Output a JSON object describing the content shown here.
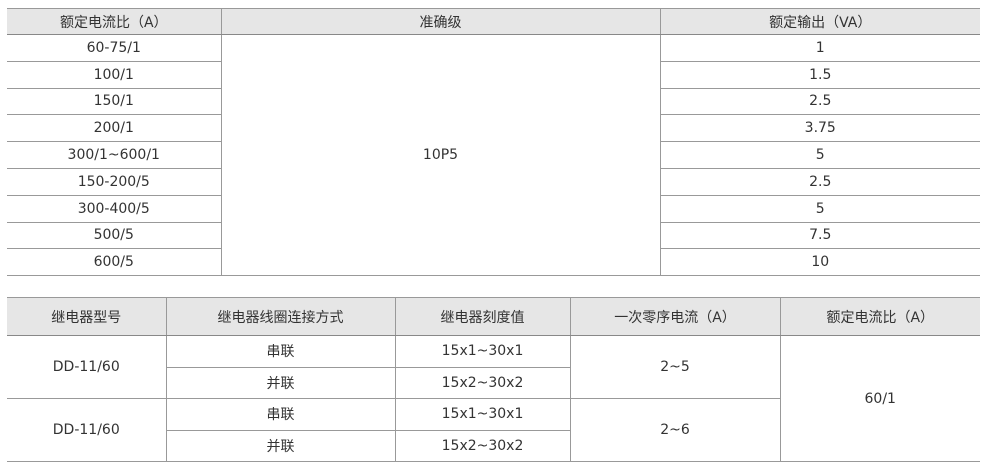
{
  "table1": {
    "headers": [
      "额定电流比（A）",
      "准确级",
      "额定输出（VA）"
    ],
    "accuracy": "10P5",
    "rows": [
      {
        "ratio": "60-75/1",
        "output": "1"
      },
      {
        "ratio": "100/1",
        "output": "1.5"
      },
      {
        "ratio": "150/1",
        "output": "2.5"
      },
      {
        "ratio": "200/1",
        "output": "3.75"
      },
      {
        "ratio": "300/1~600/1",
        "output": "5"
      },
      {
        "ratio": "150-200/5",
        "output": "2.5"
      },
      {
        "ratio": "300-400/5",
        "output": "5"
      },
      {
        "ratio": "500/5",
        "output": "7.5"
      },
      {
        "ratio": "600/5",
        "output": "10"
      }
    ]
  },
  "table2": {
    "headers": [
      "继电器型号",
      "继电器线圈连接方式",
      "继电器刻度值",
      "一次零序电流（A）",
      "额定电流比（A）"
    ],
    "rated_ratio": "60/1",
    "groups": [
      {
        "model": "DD-11/60",
        "current": "2~5",
        "rows": [
          {
            "conn": "串联",
            "scale": "15x1~30x1"
          },
          {
            "conn": "并联",
            "scale": "15x2~30x2"
          }
        ]
      },
      {
        "model": "DD-11/60",
        "current": "2~6",
        "rows": [
          {
            "conn": "串联",
            "scale": "15x1~30x1"
          },
          {
            "conn": "并联",
            "scale": "15x2~30x2"
          }
        ]
      }
    ]
  }
}
